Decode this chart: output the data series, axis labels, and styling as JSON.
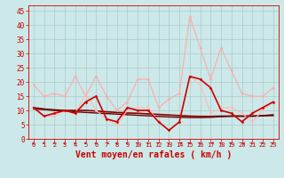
{
  "title": "",
  "xlabel": "Vent moyen/en rafales ( km/h )",
  "bg_color": "#cce8e8",
  "grid_color": "#aacccc",
  "x_ticks": [
    0,
    1,
    2,
    3,
    4,
    5,
    6,
    7,
    8,
    9,
    10,
    11,
    12,
    13,
    14,
    15,
    16,
    17,
    18,
    19,
    20,
    21,
    22,
    23
  ],
  "y_ticks": [
    0,
    5,
    10,
    15,
    20,
    25,
    30,
    35,
    40,
    45
  ],
  "ylim": [
    0,
    47
  ],
  "xlim": [
    -0.5,
    23.5
  ],
  "series": [
    {
      "name": "rafales_light",
      "color": "#ffaaaa",
      "linewidth": 0.8,
      "marker": "D",
      "markersize": 1.5,
      "values": [
        19,
        15,
        16,
        15,
        22,
        15,
        22,
        15,
        10,
        13,
        21,
        21,
        11,
        14,
        16,
        43,
        32,
        21,
        32,
        24,
        16,
        15,
        15,
        18
      ]
    },
    {
      "name": "vent_light",
      "color": "#ffbbbb",
      "linewidth": 0.8,
      "marker": "D",
      "markersize": 1.5,
      "values": [
        11,
        8,
        8,
        10,
        9,
        16,
        10,
        7,
        5,
        10,
        11,
        11,
        6,
        3,
        6,
        22,
        19,
        9,
        11,
        11,
        9,
        6,
        10,
        13
      ]
    },
    {
      "name": "dark_line1",
      "color": "#cc0000",
      "linewidth": 1.2,
      "marker": "D",
      "markersize": 1.5,
      "values": [
        11,
        8,
        9,
        10,
        9,
        13,
        15,
        7,
        6,
        11,
        10,
        10,
        6,
        3,
        6,
        22,
        21,
        18,
        10,
        9,
        6,
        9,
        11,
        13
      ]
    },
    {
      "name": "dark_line2",
      "color": "#880000",
      "linewidth": 1.2,
      "marker": null,
      "markersize": 0,
      "values": [
        11,
        10.5,
        10.2,
        10,
        10,
        10,
        9.8,
        9.5,
        9.3,
        9.1,
        9,
        8.8,
        8.6,
        8.4,
        8.2,
        8,
        7.9,
        7.9,
        8,
        8,
        8,
        8,
        8.1,
        8.2
      ]
    },
    {
      "name": "dark_line3",
      "color": "#660000",
      "linewidth": 1.0,
      "marker": null,
      "markersize": 0,
      "values": [
        10.5,
        10.3,
        10,
        9.8,
        9.5,
        9.3,
        9.1,
        8.9,
        8.7,
        8.5,
        8.3,
        8.1,
        7.9,
        7.7,
        7.6,
        7.5,
        7.5,
        7.6,
        7.8,
        8,
        8,
        8,
        8.2,
        8.5
      ]
    }
  ],
  "wind_arrows": {
    "color": "#cc0000",
    "x": [
      0,
      1,
      2,
      3,
      4,
      5,
      6,
      7,
      8,
      9,
      10,
      11,
      12,
      13,
      14,
      15,
      16,
      17,
      18,
      19,
      20,
      21,
      22,
      23
    ],
    "angles_deg": [
      225,
      225,
      225,
      225,
      225,
      225,
      225,
      270,
      225,
      315,
      315,
      225,
      315,
      0,
      270,
      315,
      315,
      270,
      315,
      315,
      270,
      225,
      225,
      225
    ]
  },
  "xlabel_color": "#cc0000",
  "xlabel_fontsize": 7,
  "tick_color": "#cc0000",
  "tick_fontsize": 5.5,
  "tick_fontsize_x": 5.0
}
